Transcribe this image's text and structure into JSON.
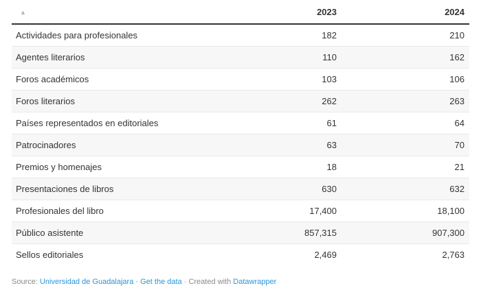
{
  "chart_data": {
    "type": "table",
    "title": "",
    "categories": [
      "Actividades para profesionales",
      "Agentes literarios",
      "Foros académicos",
      "Foros literarios",
      "Países representados en editoriales",
      "Patrocinadores",
      "Premios y homenajes",
      "Presentaciones de libros",
      "Profesionales del libro",
      "Público asistente",
      "Sellos editoriales"
    ],
    "series": [
      {
        "name": "2023",
        "values": [
          182,
          110,
          103,
          262,
          61,
          63,
          18,
          630,
          17400,
          857315,
          2469
        ]
      },
      {
        "name": "2024",
        "values": [
          210,
          162,
          106,
          263,
          64,
          70,
          21,
          632,
          18100,
          907300,
          2763
        ]
      }
    ],
    "source": "Universidad de Guadalajara"
  },
  "table": {
    "sort_icon": "▲",
    "columns": [
      {
        "label": ""
      },
      {
        "label": "2023"
      },
      {
        "label": "2024"
      }
    ],
    "rows": [
      {
        "label": "Actividades para profesionales",
        "v2023": "182",
        "v2024": "210"
      },
      {
        "label": "Agentes literarios",
        "v2023": "110",
        "v2024": "162"
      },
      {
        "label": "Foros académicos",
        "v2023": "103",
        "v2024": "106"
      },
      {
        "label": "Foros literarios",
        "v2023": "262",
        "v2024": "263"
      },
      {
        "label": "Países representados en editoriales",
        "v2023": "61",
        "v2024": "64"
      },
      {
        "label": "Patrocinadores",
        "v2023": "63",
        "v2024": "70"
      },
      {
        "label": "Premios y homenajes",
        "v2023": "18",
        "v2024": "21"
      },
      {
        "label": "Presentaciones de libros",
        "v2023": "630",
        "v2024": "632"
      },
      {
        "label": "Profesionales del libro",
        "v2023": "17,400",
        "v2024": "18,100"
      },
      {
        "label": "Público asistente",
        "v2023": "857,315",
        "v2024": "907,300"
      },
      {
        "label": "Sellos editoriales",
        "v2023": "2,469",
        "v2024": "2,763"
      }
    ]
  },
  "footer": {
    "source_prefix": "Source: ",
    "source_link": "Universidad de Guadalajara",
    "separator": " · ",
    "get_data_link": "Get the data",
    "created_with_prefix": "Created with ",
    "datawrapper_link": "Datawrapper"
  },
  "colors": {
    "link_blue": "#2896d8",
    "header_border": "#333333",
    "row_border": "#e8e8e8",
    "stripe_background": "#f7f7f7",
    "body_text": "#333333",
    "footer_text": "#8a8a8a",
    "sort_arrow": "#b3b3b3"
  }
}
